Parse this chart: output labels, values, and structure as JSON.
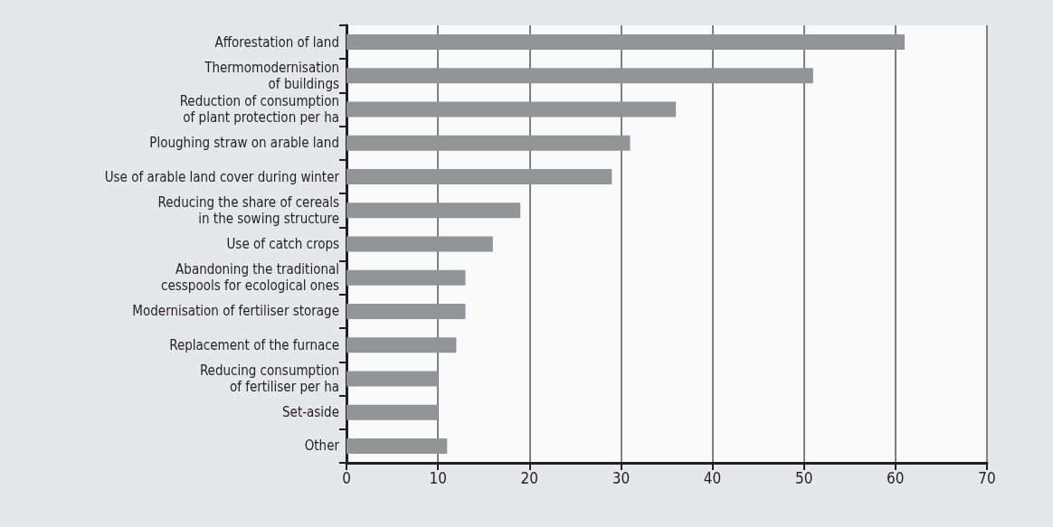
{
  "chart_data": {
    "type": "bar",
    "orientation": "horizontal",
    "categories": [
      "Afforestation of land",
      "Thermomodernisation\nof buildings",
      "Reduction of consumption\nof plant protection per ha",
      "Ploughing straw on arable land",
      "Use of arable land cover during winter",
      "Reducing the share of cereals\nin the sowing structure",
      "Use of catch crops",
      "Abandoning the traditional\ncesspools for ecological ones",
      "Modernisation of fertiliser storage",
      "Replacement of the furnace",
      "Reducing consumption\nof fertiliser per ha",
      "Set-aside",
      "Other"
    ],
    "values": [
      61,
      51,
      36,
      31,
      29,
      19,
      16,
      13,
      13,
      12,
      10,
      10,
      11
    ],
    "color": "#939498",
    "xlim": [
      0,
      70
    ],
    "xticks": [
      0,
      10,
      20,
      30,
      40,
      50,
      60,
      70
    ],
    "grid": "x"
  }
}
